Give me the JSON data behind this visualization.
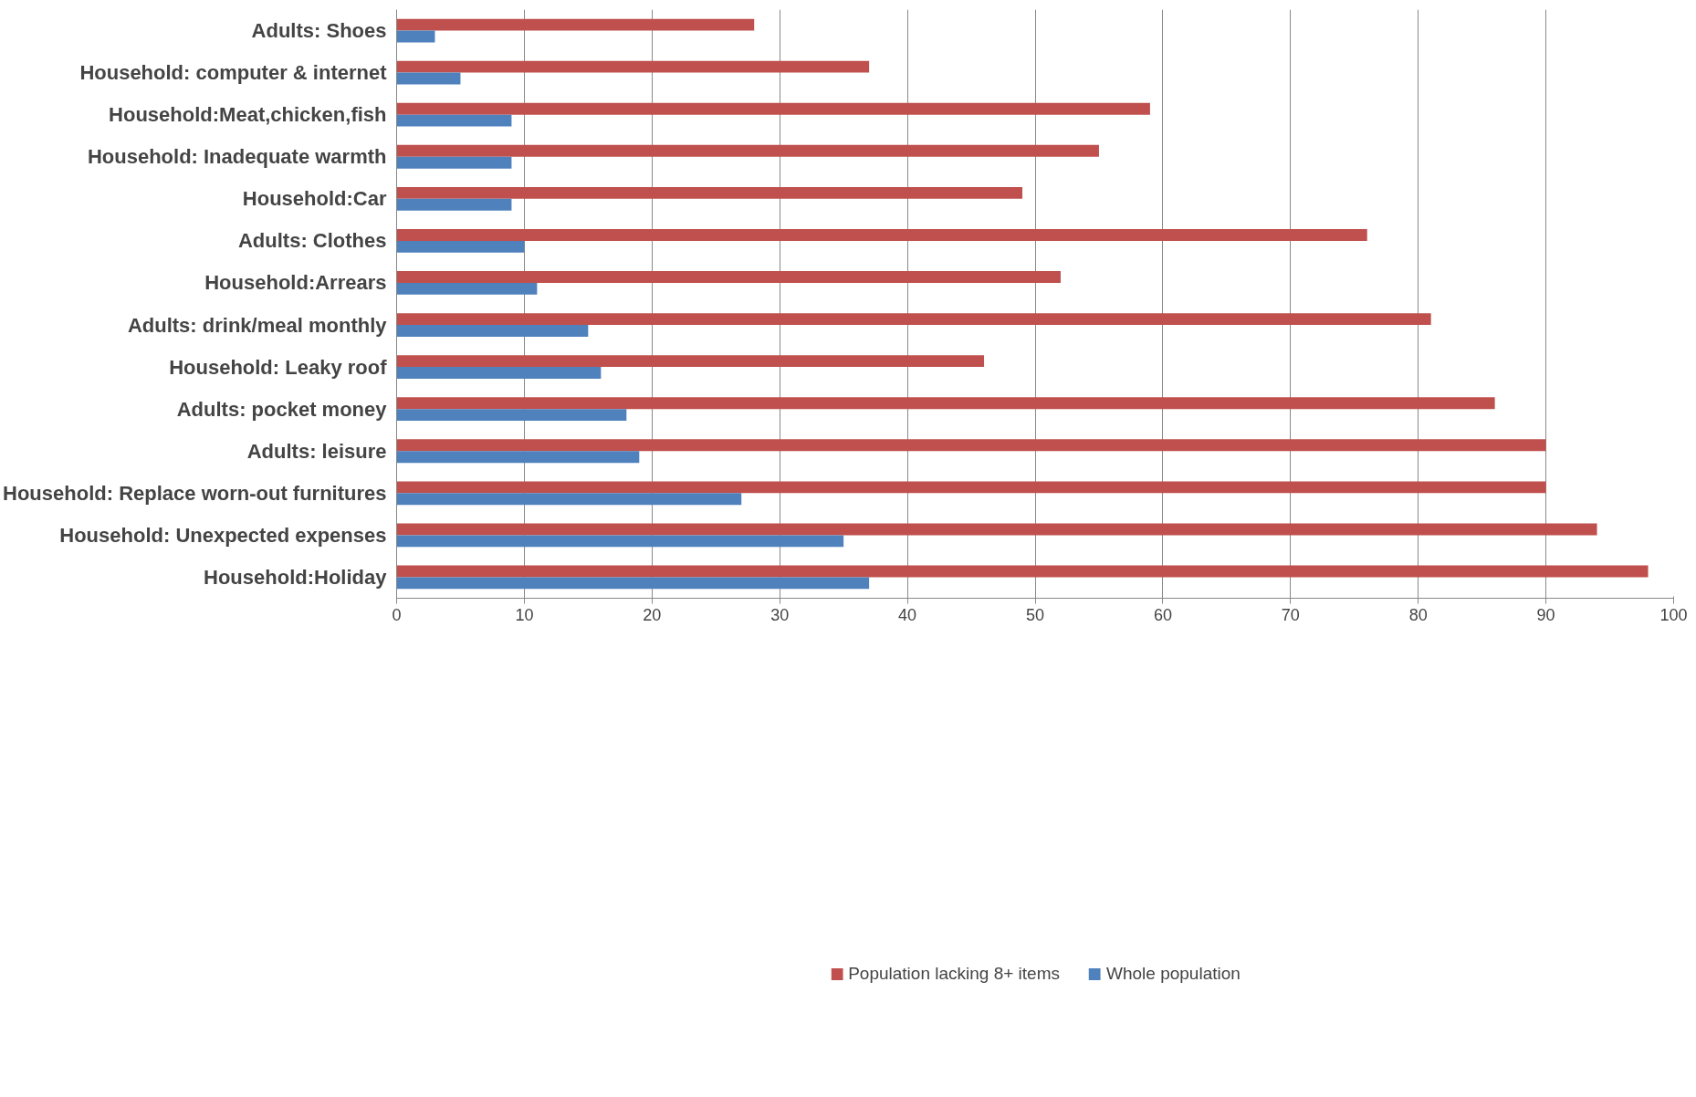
{
  "chart_data": {
    "type": "bar",
    "orientation": "horizontal",
    "categories": [
      "Adults: Shoes",
      "Household: computer & internet",
      "Household:Meat,chicken,fish",
      "Household: Inadequate warmth",
      "Household:Car",
      "Adults: Clothes",
      "Household:Arrears",
      "Adults: drink/meal monthly",
      "Household: Leaky roof",
      "Adults: pocket money",
      "Adults: leisure",
      "Household: Replace worn-out furnitures",
      "Household: Unexpected expenses",
      "Household:Holiday"
    ],
    "series": [
      {
        "name": "Population lacking 8+ items",
        "color": "#c0504d",
        "values": [
          28,
          37,
          59,
          55,
          49,
          76,
          52,
          81,
          46,
          86,
          90,
          90,
          94,
          98
        ]
      },
      {
        "name": "Whole population",
        "color": "#4f81bd",
        "values": [
          3,
          5,
          9,
          9,
          9,
          10,
          11,
          15,
          16,
          18,
          19,
          27,
          35,
          37
        ]
      }
    ],
    "xlim": [
      0,
      100
    ],
    "xticks": [
      0,
      10,
      20,
      30,
      40,
      50,
      60,
      70,
      80,
      90,
      100
    ],
    "grid": "x",
    "legend": "bottom"
  }
}
